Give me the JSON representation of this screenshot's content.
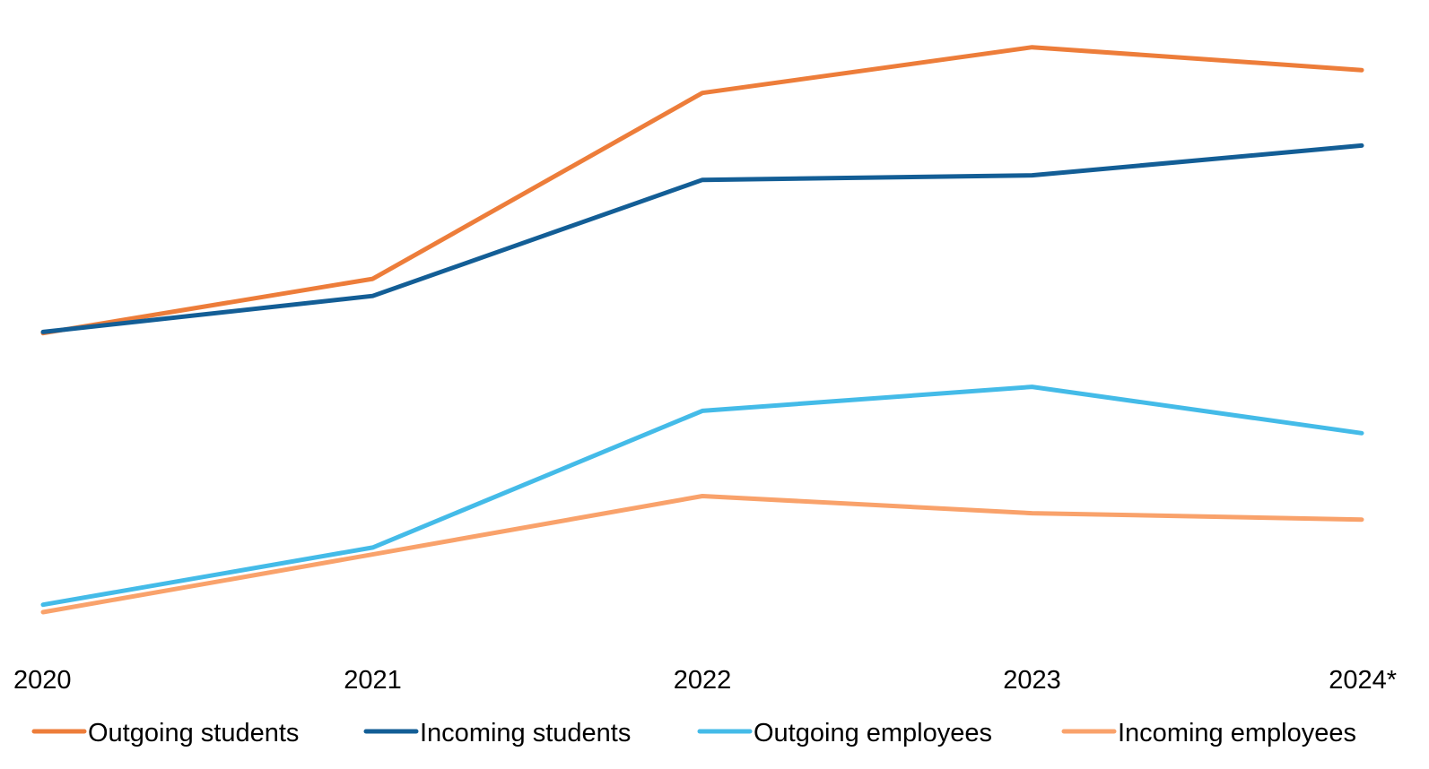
{
  "chart_data": {
    "type": "line",
    "title": "",
    "xlabel": "",
    "ylabel": "",
    "categories": [
      "2020",
      "2021",
      "2022",
      "2023",
      "2024*"
    ],
    "ylim": [
      0,
      100
    ],
    "y_axis_visible": false,
    "grid": false,
    "legend": "bottom",
    "series": [
      {
        "name": "Outgoing students",
        "color": "#ed7d3a",
        "values": [
          53.5,
          63.0,
          95.5,
          103.5,
          99.5
        ]
      },
      {
        "name": "Incoming students",
        "color": "#135e96",
        "values": [
          53.7,
          60.0,
          80.3,
          81.1,
          86.3
        ]
      },
      {
        "name": "Outgoing employees",
        "color": "#44bbe8",
        "values": [
          6.0,
          16.0,
          39.9,
          44.1,
          36.0
        ]
      },
      {
        "name": "Incoming employees",
        "color": "#f9a26b",
        "values": [
          4.7,
          14.8,
          25.0,
          22.0,
          20.9
        ]
      }
    ]
  }
}
